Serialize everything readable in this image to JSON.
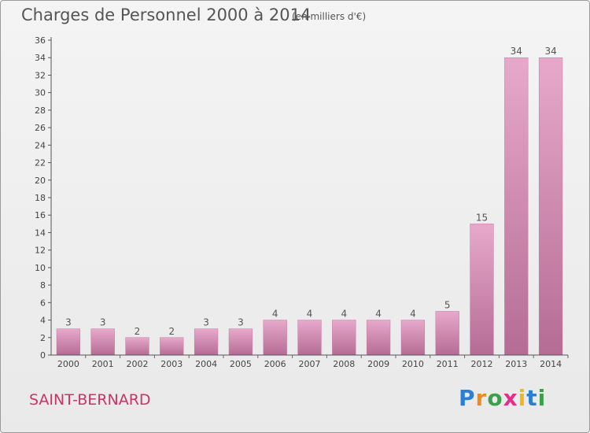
{
  "header": {
    "title": "Charges de Personnel 2000 à 2014",
    "subtitle": "(en milliers d'€)"
  },
  "footer": {
    "city": "SAINT-BERNARD",
    "logo_letters": [
      {
        "char": "P",
        "color": "#2a7fd4"
      },
      {
        "char": "r",
        "color": "#f08a1c"
      },
      {
        "char": "o",
        "color": "#3aa04a"
      },
      {
        "char": "x",
        "color": "#e0308a"
      },
      {
        "char": "i",
        "color": "#f0b81c"
      },
      {
        "char": "t",
        "color": "#2a7fd4"
      },
      {
        "char": "i",
        "color": "#3aa04a"
      }
    ]
  },
  "chart_data": {
    "type": "bar",
    "categories": [
      "2000",
      "2001",
      "2002",
      "2003",
      "2004",
      "2005",
      "2006",
      "2007",
      "2008",
      "2009",
      "2010",
      "2011",
      "2012",
      "2013",
      "2014"
    ],
    "values": [
      3,
      3,
      2,
      2,
      3,
      3,
      4,
      4,
      4,
      4,
      4,
      5,
      15,
      34,
      34
    ],
    "data_labels": [
      "3",
      "3",
      "2",
      "2",
      "3",
      "3",
      "4",
      "4",
      "4",
      "4",
      "4",
      "5",
      "15",
      "34",
      "34"
    ],
    "y_ticks": [
      "0",
      "2",
      "4",
      "6",
      "8",
      "10",
      "12",
      "14",
      "16",
      "18",
      "20",
      "22",
      "24",
      "26",
      "28",
      "30",
      "32",
      "34",
      "36"
    ],
    "ylim": [
      0,
      36
    ],
    "grid": false,
    "bar_color": "#d98bb5"
  }
}
